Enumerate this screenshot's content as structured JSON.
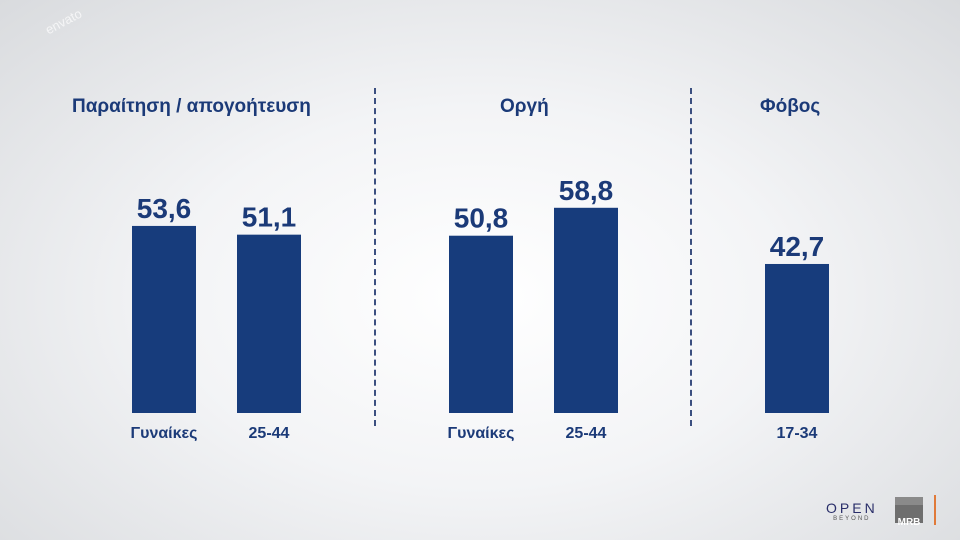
{
  "watermark": "envato",
  "chart_data": {
    "type": "bar",
    "panels": [
      {
        "title": "Παραίτηση / απογοήτευση",
        "categories": [
          "Γυναίκες",
          "25-44"
        ],
        "values": [
          53.6,
          51.1
        ],
        "labels": [
          "53,6",
          "51,1"
        ]
      },
      {
        "title": "Οργή",
        "categories": [
          "Γυναίκες",
          "25-44"
        ],
        "values": [
          50.8,
          58.8
        ],
        "labels": [
          "50,8",
          "58,8"
        ]
      },
      {
        "title": "Φόβος",
        "categories": [
          "17-34"
        ],
        "values": [
          42.7
        ],
        "labels": [
          "42,7"
        ]
      }
    ],
    "bar_color": "#173c7c",
    "grid": false
  },
  "logos": {
    "open": "OPEN",
    "open_sub": "BEYOND",
    "mrb": "MRB"
  }
}
